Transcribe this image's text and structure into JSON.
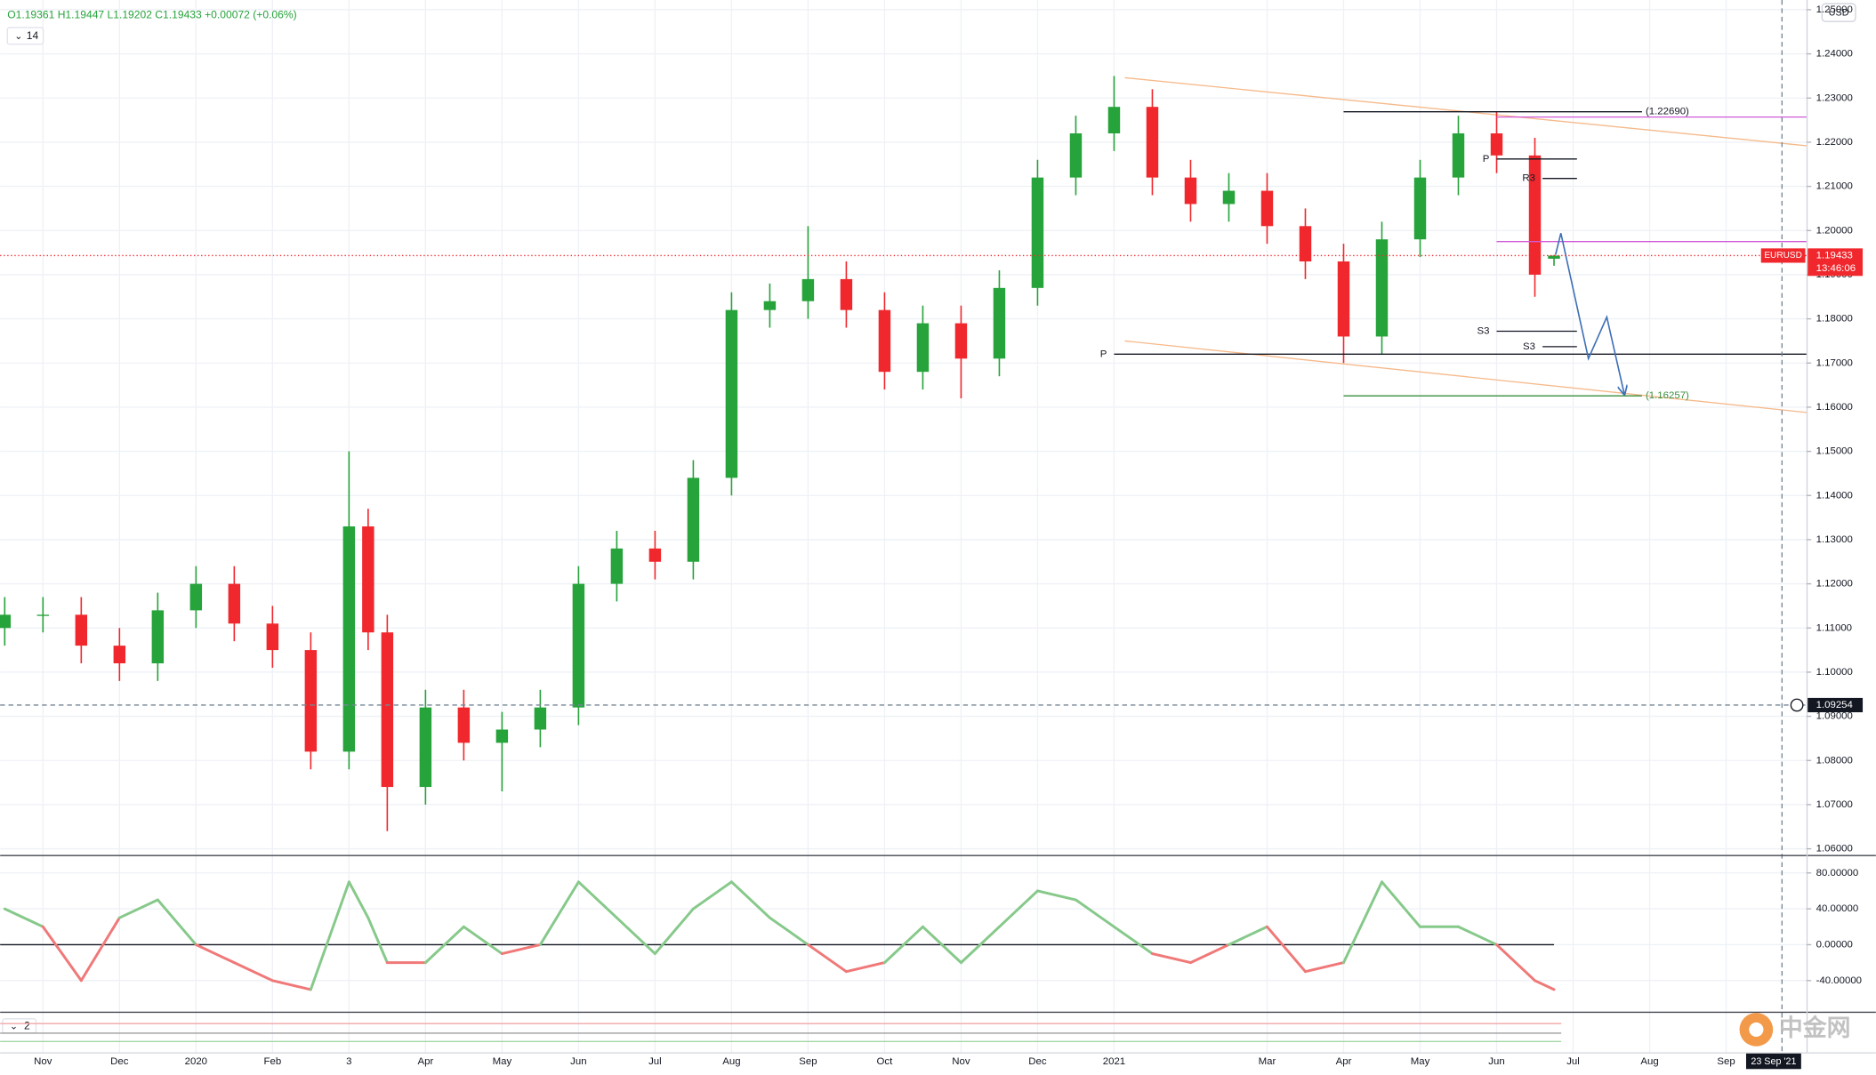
{
  "header": {
    "ohlc": "O1.19361 H1.19447 L1.19202 C1.19433 +0.00072 (+0.06%)",
    "indicator": "14"
  },
  "chart_data": [
    {
      "type": "candlestick",
      "symbol": "EURUSD",
      "currency": "USD",
      "countdown": "13:46:06",
      "up_color": "#26a33b",
      "down_color": "#f0282d",
      "grid": true,
      "x": [
        -0.5,
        0,
        0.5,
        1,
        1.5,
        2,
        2.5,
        3,
        3.5,
        4,
        4.25,
        4.5,
        5,
        5.5,
        6,
        6.5,
        7,
        7.5,
        8,
        8.5,
        9,
        9.5,
        10,
        10.5,
        11,
        11.5,
        12,
        12.5,
        13,
        13.5,
        14,
        14.5,
        15,
        15.5,
        16,
        16.5,
        17,
        17.5,
        18,
        18.5,
        19,
        19.5,
        19.75
      ],
      "open": [
        1.11,
        1.113,
        1.113,
        1.106,
        1.102,
        1.114,
        1.12,
        1.111,
        1.105,
        1.082,
        1.133,
        1.109,
        1.074,
        1.092,
        1.084,
        1.087,
        1.092,
        1.12,
        1.128,
        1.125,
        1.144,
        1.182,
        1.184,
        1.189,
        1.182,
        1.168,
        1.179,
        1.171,
        1.187,
        1.212,
        1.222,
        1.228,
        1.212,
        1.206,
        1.209,
        1.201,
        1.193,
        1.176,
        1.198,
        1.212,
        1.222,
        1.217,
        1.19361
      ],
      "high": [
        1.117,
        1.117,
        1.117,
        1.11,
        1.118,
        1.124,
        1.124,
        1.115,
        1.109,
        1.15,
        1.137,
        1.113,
        1.096,
        1.096,
        1.091,
        1.096,
        1.124,
        1.132,
        1.132,
        1.148,
        1.186,
        1.188,
        1.201,
        1.193,
        1.186,
        1.183,
        1.183,
        1.191,
        1.216,
        1.226,
        1.235,
        1.232,
        1.216,
        1.213,
        1.213,
        1.205,
        1.197,
        1.202,
        1.216,
        1.226,
        1.227,
        1.221,
        1.19447
      ],
      "low": [
        1.106,
        1.109,
        1.102,
        1.098,
        1.098,
        1.11,
        1.107,
        1.101,
        1.078,
        1.078,
        1.105,
        1.064,
        1.07,
        1.08,
        1.073,
        1.083,
        1.088,
        1.116,
        1.121,
        1.121,
        1.14,
        1.178,
        1.18,
        1.178,
        1.164,
        1.164,
        1.162,
        1.167,
        1.183,
        1.208,
        1.218,
        1.208,
        1.202,
        1.202,
        1.197,
        1.189,
        1.17,
        1.172,
        1.194,
        1.208,
        1.213,
        1.185,
        1.19202
      ],
      "close": [
        1.113,
        1.113,
        1.106,
        1.102,
        1.114,
        1.12,
        1.111,
        1.105,
        1.082,
        1.133,
        1.109,
        1.074,
        1.092,
        1.084,
        1.087,
        1.092,
        1.12,
        1.128,
        1.125,
        1.144,
        1.182,
        1.184,
        1.189,
        1.182,
        1.168,
        1.179,
        1.171,
        1.187,
        1.212,
        1.222,
        1.228,
        1.212,
        1.206,
        1.209,
        1.201,
        1.193,
        1.176,
        1.198,
        1.212,
        1.222,
        1.217,
        1.19,
        1.19433
      ],
      "xlim": [
        -0.56,
        23.05
      ],
      "ylim": [
        1.0586,
        1.2522
      ],
      "yticks": [
        {
          "value": 1.06,
          "label": "1.06000"
        },
        {
          "value": 1.07,
          "label": "1.07000"
        },
        {
          "value": 1.08,
          "label": "1.08000"
        },
        {
          "value": 1.09,
          "label": "1.09000"
        },
        {
          "value": 1.1,
          "label": "1.10000"
        },
        {
          "value": 1.11,
          "label": "1.11000"
        },
        {
          "value": 1.12,
          "label": "1.12000"
        },
        {
          "value": 1.13,
          "label": "1.13000"
        },
        {
          "value": 1.14,
          "label": "1.14000"
        },
        {
          "value": 1.15,
          "label": "1.15000"
        },
        {
          "value": 1.16,
          "label": "1.16000"
        },
        {
          "value": 1.17,
          "label": "1.17000"
        },
        {
          "value": 1.18,
          "label": "1.18000"
        },
        {
          "value": 1.19,
          "label": "1.19000"
        },
        {
          "value": 1.2,
          "label": "1.20000"
        },
        {
          "value": 1.21,
          "label": "1.21000"
        },
        {
          "value": 1.22,
          "label": "1.22000"
        },
        {
          "value": 1.23,
          "label": "1.23000"
        },
        {
          "value": 1.24,
          "label": "1.24000"
        },
        {
          "value": 1.25,
          "label": "1.25000"
        }
      ],
      "xticks": [
        {
          "value": 0,
          "label": "Nov"
        },
        {
          "value": 1,
          "label": "Dec"
        },
        {
          "value": 2,
          "label": "2020"
        },
        {
          "value": 3,
          "label": "Feb"
        },
        {
          "value": 4,
          "label": "3"
        },
        {
          "value": 5,
          "label": "Apr"
        },
        {
          "value": 6,
          "label": "May"
        },
        {
          "value": 7,
          "label": "Jun"
        },
        {
          "value": 8,
          "label": "Jul"
        },
        {
          "value": 9,
          "label": "Aug"
        },
        {
          "value": 10,
          "label": "Sep"
        },
        {
          "value": 11,
          "label": "Oct"
        },
        {
          "value": 12,
          "label": "Nov"
        },
        {
          "value": 13,
          "label": "Dec"
        },
        {
          "value": 14,
          "label": "2021"
        },
        {
          "value": 16,
          "label": "Mar"
        },
        {
          "value": 17,
          "label": "Apr"
        },
        {
          "value": 18,
          "label": "May"
        },
        {
          "value": 19,
          "label": "Jun"
        },
        {
          "value": 20,
          "label": "Jul"
        },
        {
          "value": 21,
          "label": "Aug"
        },
        {
          "value": 22,
          "label": "Sep"
        }
      ],
      "levels": [
        {
          "label": "(1.22690)",
          "value": 1.2269,
          "from": 17,
          "to": 20.9,
          "color": "#131722"
        },
        {
          "label": "(1.16257)",
          "value": 1.16257,
          "from": 17,
          "to": 20.9,
          "color": "#388e3c"
        },
        {
          "label": "P",
          "value": 1.172,
          "from": 14,
          "to": 23.05,
          "color": "#131722"
        },
        {
          "label": "P",
          "value": 1.2162,
          "from": 19,
          "to": 20.05,
          "color": "#131722"
        },
        {
          "label": "R3",
          "value": 1.2118,
          "from": 19.6,
          "to": 20.05,
          "color": "#131722"
        },
        {
          "label": "S3",
          "value": 1.1772,
          "from": 19,
          "to": 20.05,
          "color": "#131722"
        },
        {
          "label": "S3",
          "value": 1.1737,
          "from": 19.6,
          "to": 20.05,
          "color": "#131722"
        },
        {
          "value": 1.2257,
          "from": 19,
          "to": 23.05,
          "color": "#d05ad8"
        },
        {
          "value": 1.1975,
          "from": 19,
          "to": 23.05,
          "color": "#d05ad8"
        }
      ],
      "trendlines": [
        {
          "x": [
            14.14,
            23.05
          ],
          "values": [
            1.2346,
            1.2192
          ],
          "color": "#f6b98a"
        },
        {
          "x": [
            14.14,
            23.05
          ],
          "values": [
            1.175,
            1.1588
          ],
          "color": "#f6b98a"
        }
      ],
      "projection": {
        "x": [
          19.77,
          19.84,
          20.2,
          20.44,
          20.67
        ],
        "values": [
          1.1945,
          1.1994,
          1.171,
          1.1804,
          1.1629
        ],
        "color": "#3d6fb6"
      },
      "crosshair": {
        "x": 22.73,
        "x_label": "23 Sep '21",
        "y": 1.09254
      }
    },
    {
      "type": "line",
      "x": [
        -0.5,
        0,
        0.5,
        1,
        1.5,
        2,
        2.5,
        3,
        3.5,
        4,
        4.25,
        4.5,
        5,
        5.5,
        6,
        6.5,
        7,
        7.5,
        8,
        8.5,
        9,
        9.5,
        10,
        10.5,
        11,
        11.5,
        12,
        12.5,
        13,
        13.5,
        14,
        14.5,
        15,
        15.5,
        16,
        16.5,
        17,
        17.5,
        18,
        18.5,
        19,
        19.5,
        19.75
      ],
      "values": [
        40,
        20,
        -40,
        30,
        50,
        0,
        -20,
        -40,
        -50,
        70,
        30,
        -20,
        -20,
        20,
        -10,
        0,
        70,
        30,
        -10,
        40,
        70,
        30,
        0,
        -30,
        -20,
        20,
        -20,
        20,
        60,
        50,
        20,
        -10,
        -20,
        0,
        20,
        -30,
        -20,
        70,
        20,
        20,
        0,
        -40,
        -50
      ],
      "above_color": "#86c98a",
      "below_color": "#f07878",
      "hline": 0,
      "xlim": [
        -0.56,
        23.05
      ],
      "ylim": [
        -73.3,
        98.7
      ],
      "yticks": [
        {
          "value": 80,
          "label": "80.00000"
        },
        {
          "value": 40,
          "label": "40.00000"
        },
        {
          "value": 0,
          "label": "0.00000"
        },
        {
          "value": -40,
          "label": "-40.00000"
        }
      ]
    }
  ],
  "bottom_pane_label": "2",
  "watermark": "中金网"
}
